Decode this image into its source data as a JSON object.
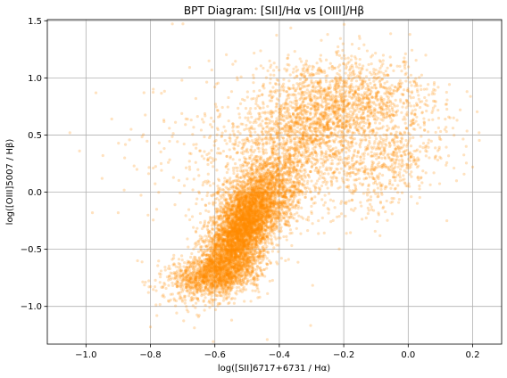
{
  "chart_data": {
    "type": "scatter",
    "title": "BPT Diagram: [SII]/Hα vs [OIII]/Hβ",
    "xlabel": "log([SII]6717+6731 / Hα)",
    "ylabel": "log([OIII]5007 / Hβ)",
    "xlim": [
      -1.12,
      0.29
    ],
    "ylim": [
      -1.33,
      1.51
    ],
    "xticks": [
      -1.0,
      -0.8,
      -0.6,
      -0.4,
      -0.2,
      0.0,
      0.2
    ],
    "xtick_labels": [
      "−1.0",
      "−0.8",
      "−0.6",
      "−0.4",
      "−0.2",
      "0.0",
      "0.2"
    ],
    "yticks": [
      -1.0,
      -0.5,
      0.0,
      0.5,
      1.0,
      1.5
    ],
    "ytick_labels": [
      "−1.0",
      "−0.5",
      "0.0",
      "0.5",
      "1.0",
      "1.5"
    ],
    "grid": true,
    "marker_color": "#ff8c00",
    "marker_alpha": 0.25,
    "series": [
      {
        "clusters": [
          {
            "center": [
              -0.52,
              -0.35
            ],
            "spread": [
              0.055,
              0.22
            ],
            "count": 3800,
            "corr": 0.55
          },
          {
            "center": [
              -0.6,
              -0.72
            ],
            "spread": [
              0.07,
              0.1
            ],
            "count": 1400,
            "corr": 0.3
          },
          {
            "center": [
              -0.45,
              -0.05
            ],
            "spread": [
              0.07,
              0.2
            ],
            "count": 1500,
            "corr": 0.4
          },
          {
            "center": [
              -0.3,
              0.55
            ],
            "spread": [
              0.11,
              0.28
            ],
            "count": 1600,
            "corr": 0.2
          },
          {
            "center": [
              -0.15,
              0.8
            ],
            "spread": [
              0.12,
              0.18
            ],
            "count": 900,
            "corr": 0.0
          },
          {
            "center": [
              -0.05,
              0.25
            ],
            "spread": [
              0.09,
              0.22
            ],
            "count": 500,
            "corr": 0.5
          },
          {
            "center": [
              -0.5,
              0.3
            ],
            "spread": [
              0.15,
              0.4
            ],
            "count": 500,
            "corr": 0.0
          }
        ],
        "outliers": [
          [
            -1.05,
            0.52
          ],
          [
            -1.02,
            0.36
          ],
          [
            -0.98,
            -0.18
          ],
          [
            -0.92,
            0.64
          ],
          [
            -0.9,
            -0.18
          ],
          [
            -0.86,
            0.55
          ],
          [
            -0.82,
            0.87
          ],
          [
            -0.8,
            -1.18
          ],
          [
            -0.78,
            -1.08
          ],
          [
            -0.95,
            0.12
          ],
          [
            -0.88,
            0.3
          ],
          [
            0.22,
            0.52
          ],
          [
            0.2,
            0.22
          ],
          [
            0.18,
            0.4
          ],
          [
            0.12,
            -0.25
          ],
          [
            -0.25,
            1.38
          ],
          [
            0.05,
            0.9
          ],
          [
            -0.84,
            -0.6
          ],
          [
            -0.76,
            -0.9
          ],
          [
            0.15,
            0.1
          ]
        ]
      }
    ]
  }
}
